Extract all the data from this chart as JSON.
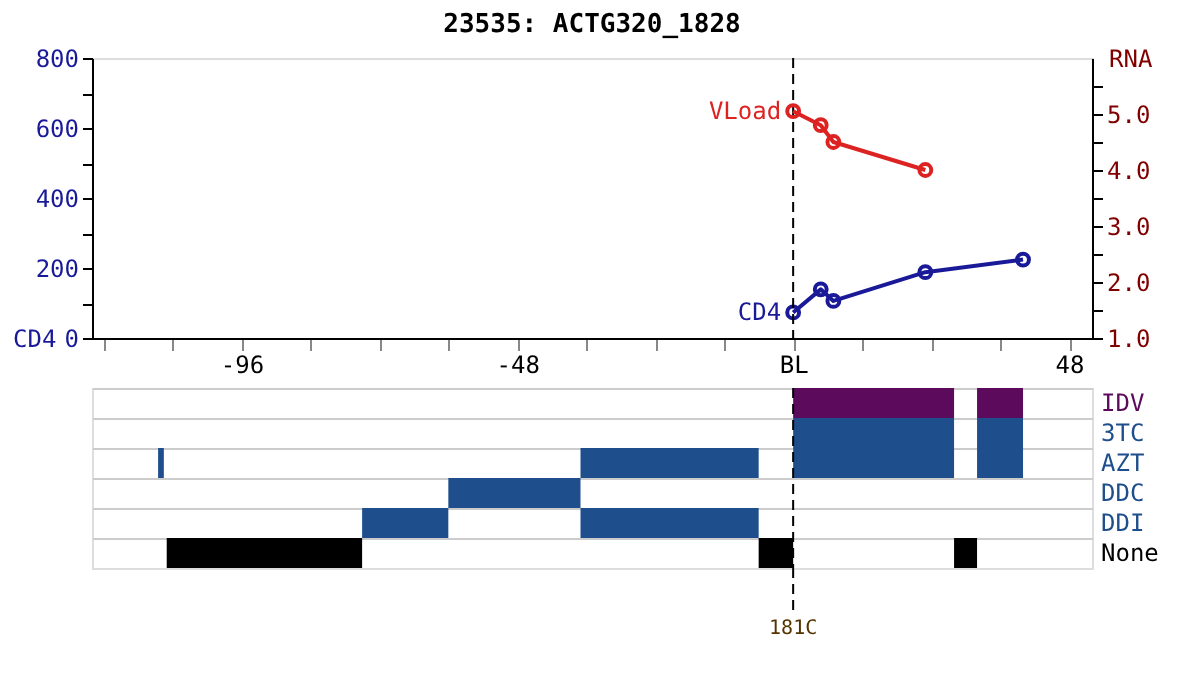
{
  "chart_data": [
    {
      "type": "line",
      "title": "23535: ACTG320_1828",
      "ylabel": "CD4",
      "y2label": "RNA",
      "marker": "circle",
      "line_style": "solid",
      "legend": false,
      "grid": false,
      "xlim": [
        -122,
        52
      ],
      "xticks": [
        {
          "value": -120,
          "label": null
        },
        {
          "value": -108,
          "label": null
        },
        -96,
        {
          "value": -84,
          "label": null
        },
        {
          "value": -72,
          "label": null
        },
        {
          "value": -60,
          "label": null
        },
        -48,
        {
          "value": -36,
          "label": null
        },
        {
          "value": -24,
          "label": null
        },
        {
          "value": -12,
          "label": null
        },
        {
          "value": 0,
          "label": "BL"
        },
        {
          "value": 12,
          "label": null
        },
        {
          "value": 24,
          "label": null
        },
        {
          "value": 36,
          "label": null
        },
        48
      ],
      "ylim": [
        0,
        800
      ],
      "yticks": [
        0,
        {
          "value": 100,
          "label": null
        },
        200,
        {
          "value": 300,
          "label": null
        },
        400,
        {
          "value": 500,
          "label": null
        },
        600,
        {
          "value": 700,
          "label": null
        },
        800
      ],
      "y2lim": [
        1,
        6
      ],
      "y2ticks": [
        {
          "value": 1,
          "label": "1.0"
        },
        {
          "value": 1.5,
          "label": null
        },
        {
          "value": 2,
          "label": "2.0"
        },
        {
          "value": 2.5,
          "label": null
        },
        {
          "value": 3,
          "label": "3.0"
        },
        {
          "value": 3.5,
          "label": null
        },
        {
          "value": 4,
          "label": "4.0"
        },
        {
          "value": 4.5,
          "label": null
        },
        {
          "value": 5,
          "label": "5.0"
        },
        {
          "value": 5.5,
          "label": null
        }
      ],
      "ref_lines": [
        {
          "axis": "x",
          "value": 0,
          "color": "#000000",
          "line_style": "dashed"
        }
      ],
      "series": [
        {
          "name": "VLoad",
          "color": "#dd2222",
          "axis": "y2",
          "x": [
            0,
            4.8,
            7,
            23
          ],
          "values": [
            5.05,
            4.8,
            4.5,
            4.0
          ]
        },
        {
          "name": "CD4",
          "color": "#1a1a99",
          "x": [
            0,
            4.8,
            7,
            23,
            40
          ],
          "values": [
            73,
            139,
            106,
            188,
            224
          ]
        }
      ]
    },
    {
      "type": "bar",
      "orientation": "horizontal",
      "tick_labels": "y",
      "grid": "y",
      "xlim": [
        -122,
        52
      ],
      "categories": [
        "IDV",
        "3TC",
        "AZT",
        "DDC",
        "DDI",
        "None"
      ],
      "ref_lines": [
        {
          "axis": "x",
          "value": 0,
          "color": "#000000",
          "line_style": "dashed"
        }
      ],
      "annotations": [
        "181C"
      ],
      "series": [
        {
          "base": [
            0,
            0,
            -110.5,
            -60,
            -75,
            -109
          ],
          "values": [
            28,
            28,
            1,
            23,
            15,
            34
          ],
          "colors": [
            "#5c0a5c",
            "#1f4e8c",
            "#1f4e8c",
            "#1f4e8c",
            "#1f4e8c",
            "#000000"
          ]
        },
        {
          "base": [
            32,
            32,
            -37,
            null,
            -37,
            -6
          ],
          "values": [
            8,
            8,
            31,
            null,
            31,
            6
          ],
          "colors": [
            "#5c0a5c",
            "#1f4e8c",
            "#1f4e8c",
            null,
            "#1f4e8c",
            "#000000"
          ]
        },
        {
          "base": [
            null,
            null,
            0,
            null,
            null,
            28
          ],
          "values": [
            null,
            null,
            28,
            null,
            null,
            4
          ],
          "colors": [
            null,
            null,
            "#1f4e8c",
            null,
            null,
            "#000000"
          ]
        },
        {
          "base": [
            null,
            null,
            32,
            null,
            null,
            null
          ],
          "values": [
            null,
            null,
            8,
            null,
            null,
            null
          ],
          "colors": [
            null,
            null,
            "#1f4e8c",
            null,
            null,
            null
          ]
        }
      ]
    }
  ]
}
